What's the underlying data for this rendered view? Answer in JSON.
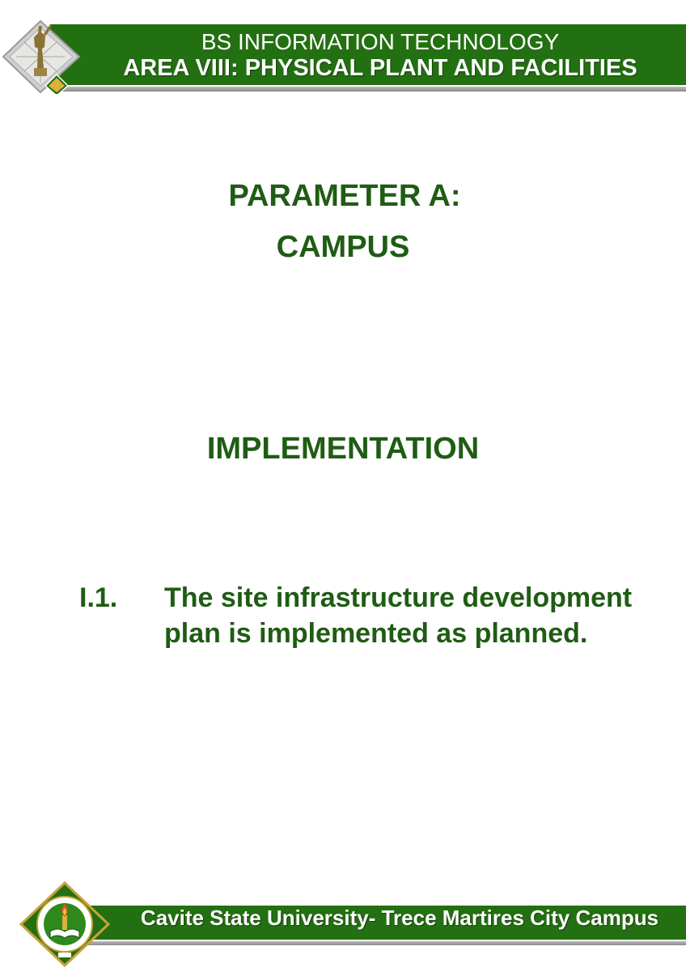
{
  "header": {
    "line1": "BS INFORMATION TECHNOLOGY",
    "line2": "AREA VIII: PHYSICAL PLANT AND FACILITIES"
  },
  "main": {
    "parameter": "PARAMETER A:",
    "campus": "CAMPUS",
    "section": "IMPLEMENTATION",
    "item": {
      "number": "I.1.",
      "text": "The site infrastructure development plan is implemented as planned."
    }
  },
  "footer": {
    "text": "Cavite State University- Trece Martires City Campus"
  },
  "colors": {
    "band_green": "#237012",
    "text_green": "#1f5c14",
    "rule_gray": "#9e9e9e"
  }
}
